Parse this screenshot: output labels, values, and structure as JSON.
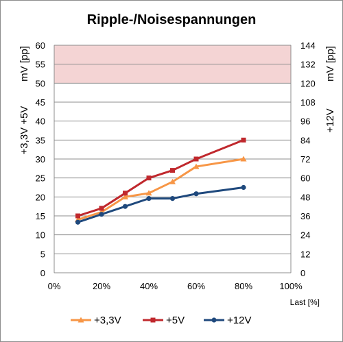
{
  "chart_data": {
    "type": "line",
    "title": "Ripple-/Noisespannungen",
    "x_ticks": [
      "0%",
      "20%",
      "40%",
      "60%",
      "80%",
      "100%"
    ],
    "xlim": [
      0,
      100
    ],
    "xlabel": "Last [%]",
    "y_left": {
      "label_top": "mV [pp]",
      "label_bottom": "+3,3V +5V",
      "ylim": [
        0,
        60
      ],
      "ticks": [
        "0",
        "5",
        "10",
        "15",
        "20",
        "25",
        "30",
        "35",
        "40",
        "45",
        "50",
        "55",
        "60"
      ]
    },
    "y_right": {
      "label_top": "mV [pp]",
      "label_bottom": "+12V",
      "ylim": [
        0,
        144
      ],
      "ticks": [
        "0",
        "12",
        "24",
        "36",
        "48",
        "60",
        "72",
        "84",
        "96",
        "108",
        "120",
        "132",
        "144"
      ]
    },
    "limit_band": {
      "from": 50,
      "to": 60,
      "axis": "left",
      "color": "#f4d4d4"
    },
    "grid": true,
    "legend_position": "bottom",
    "series": [
      {
        "name": "+3,3V",
        "axis": "left",
        "color": "#f79646",
        "marker": "triangle",
        "x": [
          10,
          20,
          30,
          40,
          50,
          60,
          80
        ],
        "values": [
          14,
          16,
          20,
          21,
          24,
          28,
          30
        ]
      },
      {
        "name": "+5V",
        "axis": "left",
        "color": "#c0282d",
        "marker": "square",
        "x": [
          10,
          20,
          30,
          40,
          50,
          60,
          80
        ],
        "values": [
          15,
          17,
          21,
          25,
          27,
          30,
          35
        ]
      },
      {
        "name": "+12V",
        "axis": "right",
        "color": "#1f497d",
        "marker": "circle",
        "x": [
          10,
          20,
          30,
          40,
          50,
          60,
          80
        ],
        "values": [
          32,
          37,
          42,
          47,
          47,
          50,
          54
        ]
      }
    ]
  }
}
